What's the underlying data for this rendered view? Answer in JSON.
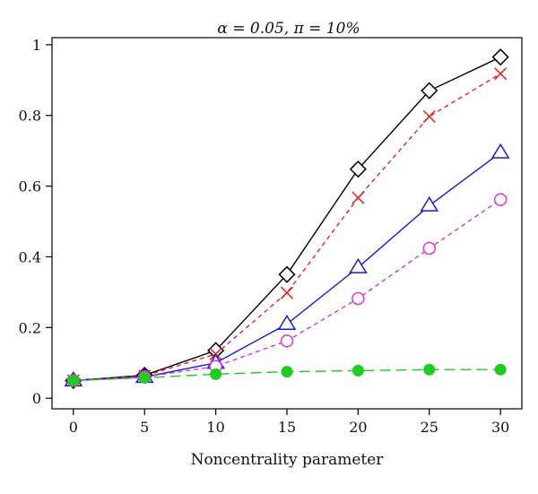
{
  "chart_data": {
    "type": "line",
    "title": "α = 0.05, π = 10%",
    "xlabel": "Noncentrality parameter",
    "ylabel": "",
    "x": [
      0,
      5,
      10,
      15,
      20,
      25,
      30
    ],
    "xlim": [
      -1.5,
      31.5
    ],
    "ylim": [
      -0.03,
      1.02
    ],
    "xticks": [
      0,
      5,
      10,
      15,
      20,
      25,
      30
    ],
    "yticks": [
      0,
      0.2,
      0.4,
      0.6,
      0.8,
      1
    ],
    "ytick_labels": [
      "0",
      "0.2",
      "0.4",
      "0.6",
      "0.8",
      "1"
    ],
    "grid": false,
    "legend": "none",
    "series": [
      {
        "marker": "diamond",
        "color": "#000000",
        "line_style": "solid",
        "values": [
          0.05,
          0.065,
          0.135,
          0.35,
          0.648,
          0.87,
          0.965
        ]
      },
      {
        "marker": "x",
        "color": "#e3262b",
        "line_style": "dashed",
        "values": [
          0.05,
          0.063,
          0.125,
          0.298,
          0.567,
          0.797,
          0.918
        ]
      },
      {
        "marker": "triangle",
        "color": "#1a1acc",
        "line_style": "solid",
        "values": [
          0.05,
          0.06,
          0.1,
          0.21,
          0.37,
          0.545,
          0.695
        ]
      },
      {
        "marker": "circle-open",
        "color": "#dd33dd",
        "line_style": "dashed",
        "values": [
          0.05,
          0.06,
          0.09,
          0.162,
          0.282,
          0.424,
          0.562
        ]
      },
      {
        "marker": "circle-filled",
        "color": "#1fcc1f",
        "line_style": "longdash",
        "values": [
          0.05,
          0.058,
          0.068,
          0.075,
          0.078,
          0.081,
          0.081
        ]
      }
    ]
  }
}
